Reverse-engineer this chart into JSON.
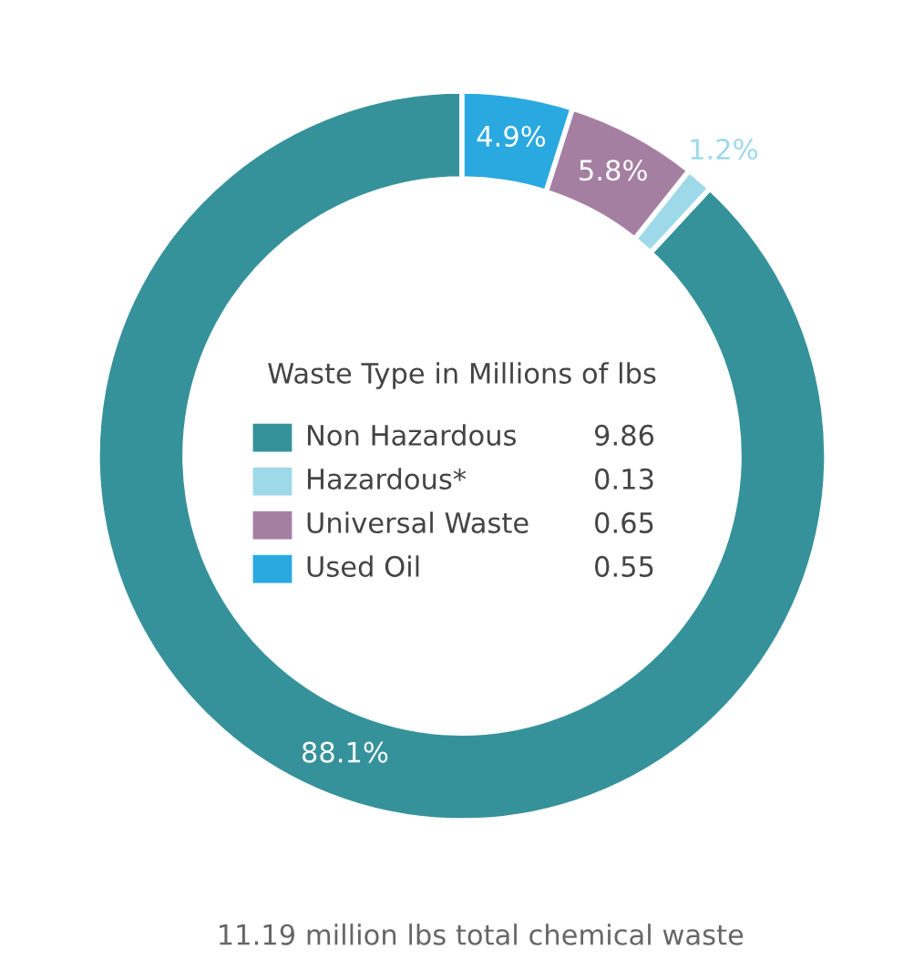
{
  "chart_data": {
    "type": "donut",
    "legend_title": "Waste Type in Millions of lbs",
    "legend": "center",
    "categories": [
      "Non Hazardous",
      "Hazardous*",
      "Universal Waste",
      "Used Oil"
    ],
    "values": [
      88.1,
      1.2,
      5.8,
      4.9
    ],
    "value_labels": [
      "88.1%",
      "1.2%",
      "5.8%",
      "4.9%"
    ],
    "colors": [
      "#36929a",
      "#9dd9e9",
      "#a57fa2",
      "#2aa9e0"
    ],
    "annotations": [
      "9.86",
      "0.13",
      "0.65",
      "0.55",
      "11.19 million lbs total chemical waste"
    ]
  }
}
